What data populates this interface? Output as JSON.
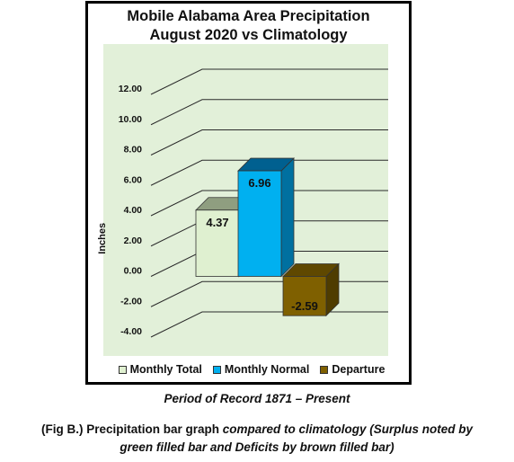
{
  "chart_data": {
    "type": "bar",
    "title": "Mobile Alabama Area Precipitation",
    "subtitle": "August 2020 vs Climatology",
    "ylabel": "Inches",
    "ylim": [
      -4,
      12
    ],
    "ytick_step": 2,
    "yticks": [
      "12.00",
      "10.00",
      "8.00",
      "6.00",
      "4.00",
      "2.00",
      "0.00",
      "-2.00",
      "-4.00"
    ],
    "categories": [
      "Monthly Total",
      "Monthly Normal",
      "Departure"
    ],
    "values": [
      4.37,
      6.96,
      -2.59
    ],
    "data_labels": [
      "4.37",
      "6.96",
      "-2.59"
    ],
    "colors": [
      "#dff0d0",
      "#00b0f0",
      "#7f6000"
    ],
    "side_colors": [
      "#a9b79a",
      "#0070a0",
      "#4f3c00"
    ],
    "top_colors": [
      "#8f9e80",
      "#006090",
      "#5f4800"
    ],
    "wall_color": "#e2f0d9",
    "legend_position": "bottom",
    "grid": true
  },
  "caption": {
    "period": "Period of Record 1871 – Present",
    "line1_prefix": "(Fig B.) Precipitation bar graph ",
    "line1_italic": "compared to climatology (Surplus noted by",
    "line2": "green filled bar and Deficits by brown filled bar)"
  }
}
